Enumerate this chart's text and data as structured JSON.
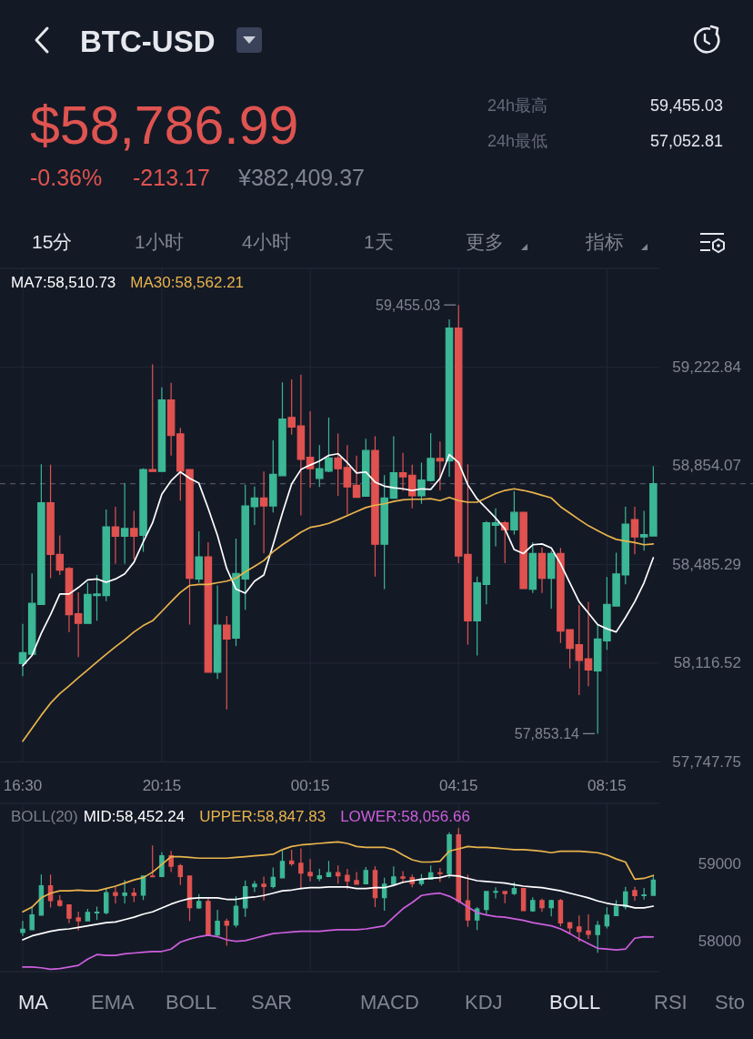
{
  "chart_data": [
    {
      "type": "candlestick",
      "title": "BTC-USD",
      "annotations": [
        "$58,786.99",
        "-0.36%",
        "-213.17",
        "¥382,409.37",
        "24h最高",
        "59,455.03",
        "24h最低",
        "57,052.81",
        "15分",
        "1小时",
        "4小时",
        "1天",
        "更多",
        "指标",
        "57,853.14",
        {
          "text": "59,455.03",
          "x": "04:15",
          "y": 59455.03
        }
      ],
      "categories": [
        "16:30",
        null,
        null,
        null,
        null,
        null,
        null,
        null,
        null,
        null,
        null,
        null,
        null,
        null,
        null,
        "20:15",
        null,
        null,
        null,
        null,
        null,
        null,
        null,
        null,
        null,
        null,
        null,
        null,
        null,
        null,
        null,
        "00:15",
        null,
        null,
        null,
        null,
        null,
        null,
        null,
        null,
        null,
        null,
        null,
        null,
        null,
        null,
        null,
        "04:15",
        null,
        null,
        null,
        null,
        null,
        null,
        null,
        null,
        null,
        null,
        null,
        null,
        null,
        null,
        null,
        "08:15",
        null,
        null,
        null,
        null,
        null
      ],
      "ohlc": [
        [
          58115,
          58263,
          58068,
          58156
        ],
        [
          58150,
          58452,
          58145,
          58340
        ],
        [
          58336,
          58860,
          58334,
          58716
        ],
        [
          58716,
          58858,
          58434,
          58523
        ],
        [
          58523,
          58594,
          58446,
          58464
        ],
        [
          58470,
          58476,
          58233,
          58298
        ],
        [
          58301,
          58381,
          58139,
          58265
        ],
        [
          58265,
          58417,
          58263,
          58373
        ],
        [
          58369,
          58446,
          58275,
          58375
        ],
        [
          58369,
          58691,
          58348,
          58626
        ],
        [
          58626,
          58701,
          58488,
          58591
        ],
        [
          58591,
          58789,
          58488,
          58620
        ],
        [
          58620,
          58686,
          58505,
          58591
        ],
        [
          58594,
          58845,
          58533,
          58840
        ],
        [
          58840,
          59233,
          58833,
          58833
        ],
        [
          58833,
          59147,
          58833,
          59100
        ],
        [
          59100,
          59164,
          58892,
          58967
        ],
        [
          58973,
          58996,
          58724,
          58834
        ],
        [
          58840,
          58842,
          58261,
          58434
        ],
        [
          58431,
          58609,
          58417,
          58514
        ],
        [
          58514,
          58568,
          58083,
          58083
        ],
        [
          58083,
          58407,
          58058,
          58259
        ],
        [
          58259,
          58293,
          57944,
          58207
        ],
        [
          58210,
          58582,
          58180,
          58452
        ],
        [
          58431,
          58783,
          58316,
          58704
        ],
        [
          58701,
          58777,
          58633,
          58734
        ],
        [
          58734,
          58833,
          58527,
          58704
        ],
        [
          58704,
          58949,
          58680,
          58822
        ],
        [
          58817,
          59166,
          58817,
          59029
        ],
        [
          59035,
          59177,
          58970,
          58999
        ],
        [
          59003,
          59195,
          58669,
          58878
        ],
        [
          58886,
          59058,
          58772,
          58843
        ],
        [
          58807,
          58931,
          58775,
          58843
        ],
        [
          58834,
          59034,
          58830,
          58883
        ],
        [
          58883,
          58975,
          58742,
          58843
        ],
        [
          58848,
          58931,
          58671,
          58775
        ],
        [
          58781,
          58892,
          58734,
          58736
        ],
        [
          58740,
          58955,
          58740,
          58911
        ],
        [
          58911,
          58964,
          58440,
          58561
        ],
        [
          58561,
          58819,
          58393,
          58734
        ],
        [
          58733,
          58964,
          58733,
          58828
        ],
        [
          58828,
          58902,
          58760,
          58813
        ],
        [
          58819,
          58858,
          58695,
          58742
        ],
        [
          58742,
          58866,
          58712,
          58801
        ],
        [
          58799,
          58976,
          58795,
          58882
        ],
        [
          58882,
          58945,
          58762,
          58872
        ],
        [
          58872,
          59401,
          58813,
          59369
        ],
        [
          59369,
          59455.03,
          58490,
          58517
        ],
        [
          58523,
          58860,
          58186,
          58275
        ],
        [
          58275,
          58440,
          58145,
          58417
        ],
        [
          58411,
          58647,
          58336,
          58641
        ],
        [
          58632,
          58695,
          58553,
          58641
        ],
        [
          58641,
          58647,
          58490,
          58615
        ],
        [
          58615,
          58760,
          58597,
          58680
        ],
        [
          58680,
          58680,
          58395,
          58395
        ],
        [
          58393,
          58568,
          58379,
          58526
        ],
        [
          58526,
          58549,
          58379,
          58434
        ],
        [
          58434,
          58535,
          58320,
          58526
        ],
        [
          58526,
          58547,
          58192,
          58236
        ],
        [
          58242,
          58242,
          58097,
          58172
        ],
        [
          58186,
          58334,
          57997,
          58127
        ],
        [
          58133,
          58346,
          58030,
          58091
        ],
        [
          58088,
          58261,
          57853.14,
          58207
        ],
        [
          58200,
          58438,
          58166,
          58336
        ],
        [
          58330,
          58529,
          58330,
          58450
        ],
        [
          58446,
          58701,
          58411,
          58636
        ],
        [
          58653,
          58701,
          58523,
          58588
        ],
        [
          58588,
          58686,
          58537,
          58597
        ],
        [
          58592,
          58852,
          58592,
          58786.99
        ]
      ],
      "colors": [
        "#3bb795",
        "#3bb795",
        "#3bb795",
        "#e0524f",
        "#e0524f",
        "#e0524f",
        "#e0524f",
        "#3bb795",
        "#3bb795",
        "#3bb795",
        "#e0524f",
        "#3bb795",
        "#e0524f",
        "#3bb795",
        "#e0524f",
        "#3bb795",
        "#e0524f",
        "#e0524f",
        "#e0524f",
        "#3bb795",
        "#e0524f",
        "#3bb795",
        "#e0524f",
        "#3bb795",
        "#3bb795",
        "#3bb795",
        "#e0524f",
        "#3bb795",
        "#3bb795",
        "#e0524f",
        "#e0524f",
        "#e0524f",
        "#3bb795",
        "#3bb795",
        "#e0524f",
        "#e0524f",
        "#e0524f",
        "#3bb795",
        "#e0524f",
        "#3bb795",
        "#3bb795",
        "#e0524f",
        "#e0524f",
        "#3bb795",
        "#3bb795",
        "#e0524f",
        "#3bb795",
        "#e0524f",
        "#e0524f",
        "#3bb795",
        "#3bb795",
        "#3bb795",
        "#e0524f",
        "#3bb795",
        "#e0524f",
        "#3bb795",
        "#e0524f",
        "#3bb795",
        "#e0524f",
        "#e0524f",
        "#e0524f",
        "#e0524f",
        "#3bb795",
        "#3bb795",
        "#3bb795",
        "#3bb795",
        "#e0524f",
        "#3bb795",
        "#3bb795"
      ],
      "series": [
        {
          "name": "MA7:58,510.73",
          "type": "line",
          "color": "#ffffff",
          "values": [
            58107,
            58145,
            58228,
            58298,
            58375,
            58375,
            58399,
            58428,
            58431,
            58419,
            58431,
            58450,
            58494,
            58570,
            58641,
            58748,
            58798,
            58831,
            58807,
            58789,
            58695,
            58594,
            58470,
            58393,
            58378,
            58423,
            58446,
            58559,
            58677,
            58786,
            58840,
            58857,
            58872,
            58893,
            58899,
            58866,
            58827,
            58831,
            58793,
            58778,
            58772,
            58768,
            58762,
            58768,
            58766,
            58807,
            58896,
            58866,
            58783,
            58730,
            58695,
            58659,
            58618,
            58541,
            58526,
            58559,
            58562,
            58547,
            58488,
            58417,
            58346,
            58304,
            58261,
            58245,
            58233,
            58287,
            58346,
            58417,
            58510.73
          ]
        },
        {
          "name": "MA30:58,562.21",
          "type": "line",
          "color": "#e9b44c",
          "values": [
            57825,
            57873,
            57922,
            57967,
            58003,
            58032,
            58062,
            58091,
            58121,
            58150,
            58178,
            58204,
            58233,
            58257,
            58275,
            58310,
            58346,
            58381,
            58407,
            58411,
            58411,
            58417,
            58423,
            58434,
            58458,
            58478,
            58500,
            58533,
            58559,
            58582,
            58606,
            58624,
            58630,
            58639,
            58653,
            58668,
            58683,
            58698,
            58707,
            58712,
            58721,
            58727,
            58729,
            58729,
            58731,
            58724,
            58736,
            58724,
            58718,
            58718,
            58734,
            58750,
            58762,
            58768,
            58762,
            58754,
            58744,
            58734,
            58701,
            58677,
            58653,
            58630,
            58612,
            58594,
            58579,
            58573,
            58567,
            58559,
            58562.21
          ]
        }
      ],
      "ylim": [
        57747.75,
        59591.6
      ],
      "yticks": [
        {
          "value": 57747.75,
          "label": "57,747.75"
        },
        {
          "value": 58116.52,
          "label": "58,116.52"
        },
        {
          "value": 58485.29,
          "label": "58,485.29"
        },
        {
          "value": 58854.07,
          "label": "58,854.07"
        },
        {
          "value": 59222.84,
          "label": "59,222.84"
        }
      ],
      "ref_lines": [
        {
          "axis": "y",
          "value": 58786.99,
          "color": "#5b6172",
          "line_style": "dashed"
        }
      ],
      "grid": true,
      "legend": "top left"
    },
    {
      "type": "candlestick",
      "legend_title": "BOLL(20)",
      "annotations": [
        "MA",
        "EMA",
        "BOLL",
        "SAR",
        "MACD",
        "KDJ",
        "BOLL",
        "RSI",
        "Sto"
      ],
      "categories": [
        null,
        null,
        null,
        null,
        null,
        null,
        null,
        null,
        null,
        null,
        null,
        null,
        null,
        null,
        null,
        null,
        null,
        null,
        null,
        null,
        null,
        null,
        null,
        null,
        null,
        null,
        null,
        null,
        null,
        null,
        null,
        null,
        null,
        null,
        null,
        null,
        null,
        null,
        null,
        null,
        null,
        null,
        null,
        null,
        null,
        null,
        null,
        null,
        null,
        null,
        null,
        null,
        null,
        null,
        null,
        null,
        null,
        null,
        null,
        null,
        null,
        null,
        null,
        null,
        null,
        null,
        null,
        null,
        null
      ],
      "ohlc": [
        [
          58115,
          58263,
          58068,
          58156
        ],
        [
          58150,
          58452,
          58145,
          58340
        ],
        [
          58336,
          58860,
          58334,
          58716
        ],
        [
          58716,
          58858,
          58434,
          58523
        ],
        [
          58523,
          58594,
          58446,
          58464
        ],
        [
          58470,
          58476,
          58233,
          58298
        ],
        [
          58301,
          58381,
          58139,
          58265
        ],
        [
          58265,
          58417,
          58263,
          58373
        ],
        [
          58369,
          58446,
          58275,
          58375
        ],
        [
          58369,
          58691,
          58348,
          58626
        ],
        [
          58626,
          58701,
          58488,
          58591
        ],
        [
          58591,
          58789,
          58488,
          58620
        ],
        [
          58620,
          58686,
          58505,
          58591
        ],
        [
          58594,
          58845,
          58533,
          58840
        ],
        [
          58840,
          59233,
          58833,
          58833
        ],
        [
          58833,
          59147,
          58833,
          59100
        ],
        [
          59100,
          59164,
          58892,
          58967
        ],
        [
          58973,
          58996,
          58724,
          58834
        ],
        [
          58840,
          58842,
          58261,
          58434
        ],
        [
          58431,
          58609,
          58417,
          58514
        ],
        [
          58514,
          58568,
          58083,
          58083
        ],
        [
          58083,
          58407,
          58058,
          58259
        ],
        [
          58259,
          58293,
          57944,
          58207
        ],
        [
          58210,
          58582,
          58180,
          58452
        ],
        [
          58431,
          58783,
          58316,
          58704
        ],
        [
          58701,
          58777,
          58633,
          58734
        ],
        [
          58734,
          58833,
          58527,
          58704
        ],
        [
          58704,
          58949,
          58680,
          58822
        ],
        [
          58817,
          59166,
          58817,
          59029
        ],
        [
          59035,
          59177,
          58970,
          58999
        ],
        [
          59003,
          59195,
          58669,
          58878
        ],
        [
          58886,
          59058,
          58772,
          58843
        ],
        [
          58807,
          58931,
          58775,
          58843
        ],
        [
          58834,
          59034,
          58830,
          58883
        ],
        [
          58883,
          58975,
          58742,
          58843
        ],
        [
          58848,
          58931,
          58671,
          58775
        ],
        [
          58781,
          58892,
          58734,
          58736
        ],
        [
          58740,
          58955,
          58740,
          58911
        ],
        [
          58911,
          58964,
          58440,
          58561
        ],
        [
          58561,
          58819,
          58393,
          58734
        ],
        [
          58733,
          58964,
          58733,
          58828
        ],
        [
          58828,
          58902,
          58760,
          58813
        ],
        [
          58819,
          58858,
          58695,
          58742
        ],
        [
          58742,
          58866,
          58712,
          58801
        ],
        [
          58799,
          58976,
          58795,
          58882
        ],
        [
          58882,
          58945,
          58762,
          58872
        ],
        [
          58872,
          59401,
          58813,
          59369
        ],
        [
          59369,
          59455.03,
          58490,
          58517
        ],
        [
          58523,
          58860,
          58186,
          58275
        ],
        [
          58275,
          58440,
          58145,
          58417
        ],
        [
          58411,
          58647,
          58336,
          58641
        ],
        [
          58632,
          58695,
          58553,
          58641
        ],
        [
          58641,
          58647,
          58490,
          58615
        ],
        [
          58615,
          58760,
          58597,
          58680
        ],
        [
          58680,
          58680,
          58395,
          58395
        ],
        [
          58393,
          58568,
          58379,
          58526
        ],
        [
          58526,
          58549,
          58379,
          58434
        ],
        [
          58434,
          58535,
          58320,
          58526
        ],
        [
          58526,
          58547,
          58192,
          58236
        ],
        [
          58242,
          58242,
          58097,
          58172
        ],
        [
          58186,
          58334,
          57997,
          58127
        ],
        [
          58133,
          58346,
          58030,
          58091
        ],
        [
          58088,
          58261,
          57853.14,
          58207
        ],
        [
          58200,
          58438,
          58166,
          58336
        ],
        [
          58330,
          58529,
          58330,
          58450
        ],
        [
          58446,
          58701,
          58411,
          58636
        ],
        [
          58653,
          58701,
          58523,
          58588
        ],
        [
          58588,
          58686,
          58537,
          58597
        ],
        [
          58592,
          58852,
          58592,
          58786.99
        ]
      ],
      "colors": [
        "#3bb795",
        "#3bb795",
        "#3bb795",
        "#e0524f",
        "#e0524f",
        "#e0524f",
        "#e0524f",
        "#3bb795",
        "#3bb795",
        "#3bb795",
        "#e0524f",
        "#3bb795",
        "#e0524f",
        "#3bb795",
        "#e0524f",
        "#3bb795",
        "#e0524f",
        "#e0524f",
        "#e0524f",
        "#3bb795",
        "#e0524f",
        "#3bb795",
        "#e0524f",
        "#3bb795",
        "#3bb795",
        "#3bb795",
        "#e0524f",
        "#3bb795",
        "#3bb795",
        "#e0524f",
        "#e0524f",
        "#e0524f",
        "#3bb795",
        "#3bb795",
        "#e0524f",
        "#e0524f",
        "#e0524f",
        "#3bb795",
        "#e0524f",
        "#3bb795",
        "#3bb795",
        "#e0524f",
        "#e0524f",
        "#3bb795",
        "#3bb795",
        "#e0524f",
        "#3bb795",
        "#e0524f",
        "#e0524f",
        "#3bb795",
        "#3bb795",
        "#3bb795",
        "#e0524f",
        "#3bb795",
        "#e0524f",
        "#3bb795",
        "#e0524f",
        "#3bb795",
        "#e0524f",
        "#e0524f",
        "#e0524f",
        "#e0524f",
        "#3bb795",
        "#3bb795",
        "#3bb795",
        "#3bb795",
        "#e0524f",
        "#3bb795",
        "#3bb795"
      ],
      "series": [
        {
          "name": "MID:58,452.24",
          "type": "line",
          "color": "#ffffff",
          "values": [
            58020,
            58070,
            58100,
            58130,
            58150,
            58160,
            58180,
            58200,
            58220,
            58240,
            58250,
            58280,
            58310,
            58350,
            58380,
            58430,
            58480,
            58520,
            58550,
            58560,
            58560,
            58560,
            58540,
            58540,
            58560,
            58570,
            58590,
            58620,
            58650,
            58660,
            58680,
            58690,
            58690,
            58700,
            58700,
            58700,
            58680,
            58680,
            58690,
            58690,
            58720,
            58760,
            58780,
            58800,
            58810,
            58820,
            58850,
            58840,
            58810,
            58780,
            58770,
            58760,
            58750,
            58730,
            58710,
            58700,
            58690,
            58670,
            58650,
            58620,
            58590,
            58560,
            58520,
            58490,
            58470,
            58460,
            58430,
            58430,
            58452.24
          ]
        },
        {
          "name": "UPPER:58,847.83",
          "type": "line",
          "color": "#e9b44c",
          "values": [
            58380,
            58440,
            58560,
            58620,
            58650,
            58650,
            58660,
            58650,
            58650,
            58680,
            58710,
            58750,
            58790,
            58820,
            58890,
            58990,
            59090,
            59090,
            59080,
            59070,
            59070,
            59070,
            59070,
            59080,
            59090,
            59100,
            59110,
            59120,
            59180,
            59220,
            59240,
            59250,
            59260,
            59270,
            59280,
            59260,
            59220,
            59210,
            59210,
            59210,
            59180,
            59110,
            59050,
            59020,
            59020,
            59030,
            59160,
            59190,
            59220,
            59210,
            59210,
            59200,
            59190,
            59180,
            59180,
            59170,
            59160,
            59140,
            59160,
            59160,
            59160,
            59150,
            59140,
            59110,
            59060,
            59020,
            58800,
            58810,
            58847.83
          ]
        },
        {
          "name": "LOWER:58,056.66",
          "type": "line",
          "color": "#cc5fdc",
          "values": [
            57670,
            57670,
            57660,
            57640,
            57650,
            57670,
            57690,
            57770,
            57830,
            57820,
            57820,
            57840,
            57850,
            57860,
            57870,
            57870,
            57900,
            57990,
            58030,
            58060,
            58080,
            58060,
            58020,
            58000,
            58010,
            58040,
            58070,
            58100,
            58110,
            58120,
            58130,
            58130,
            58130,
            58140,
            58150,
            58150,
            58150,
            58160,
            58180,
            58200,
            58310,
            58420,
            58500,
            58590,
            58610,
            58620,
            58580,
            58520,
            58440,
            58370,
            58340,
            58320,
            58310,
            58290,
            58270,
            58240,
            58220,
            58200,
            58160,
            58100,
            58030,
            57970,
            57910,
            57900,
            57890,
            57900,
            58040,
            58060,
            58056.66
          ]
        }
      ],
      "ylim": [
        57610,
        59775
      ],
      "yticks": [
        58000,
        59000
      ],
      "grid": "x",
      "legend": "top left",
      "tick_labels": "y"
    }
  ]
}
